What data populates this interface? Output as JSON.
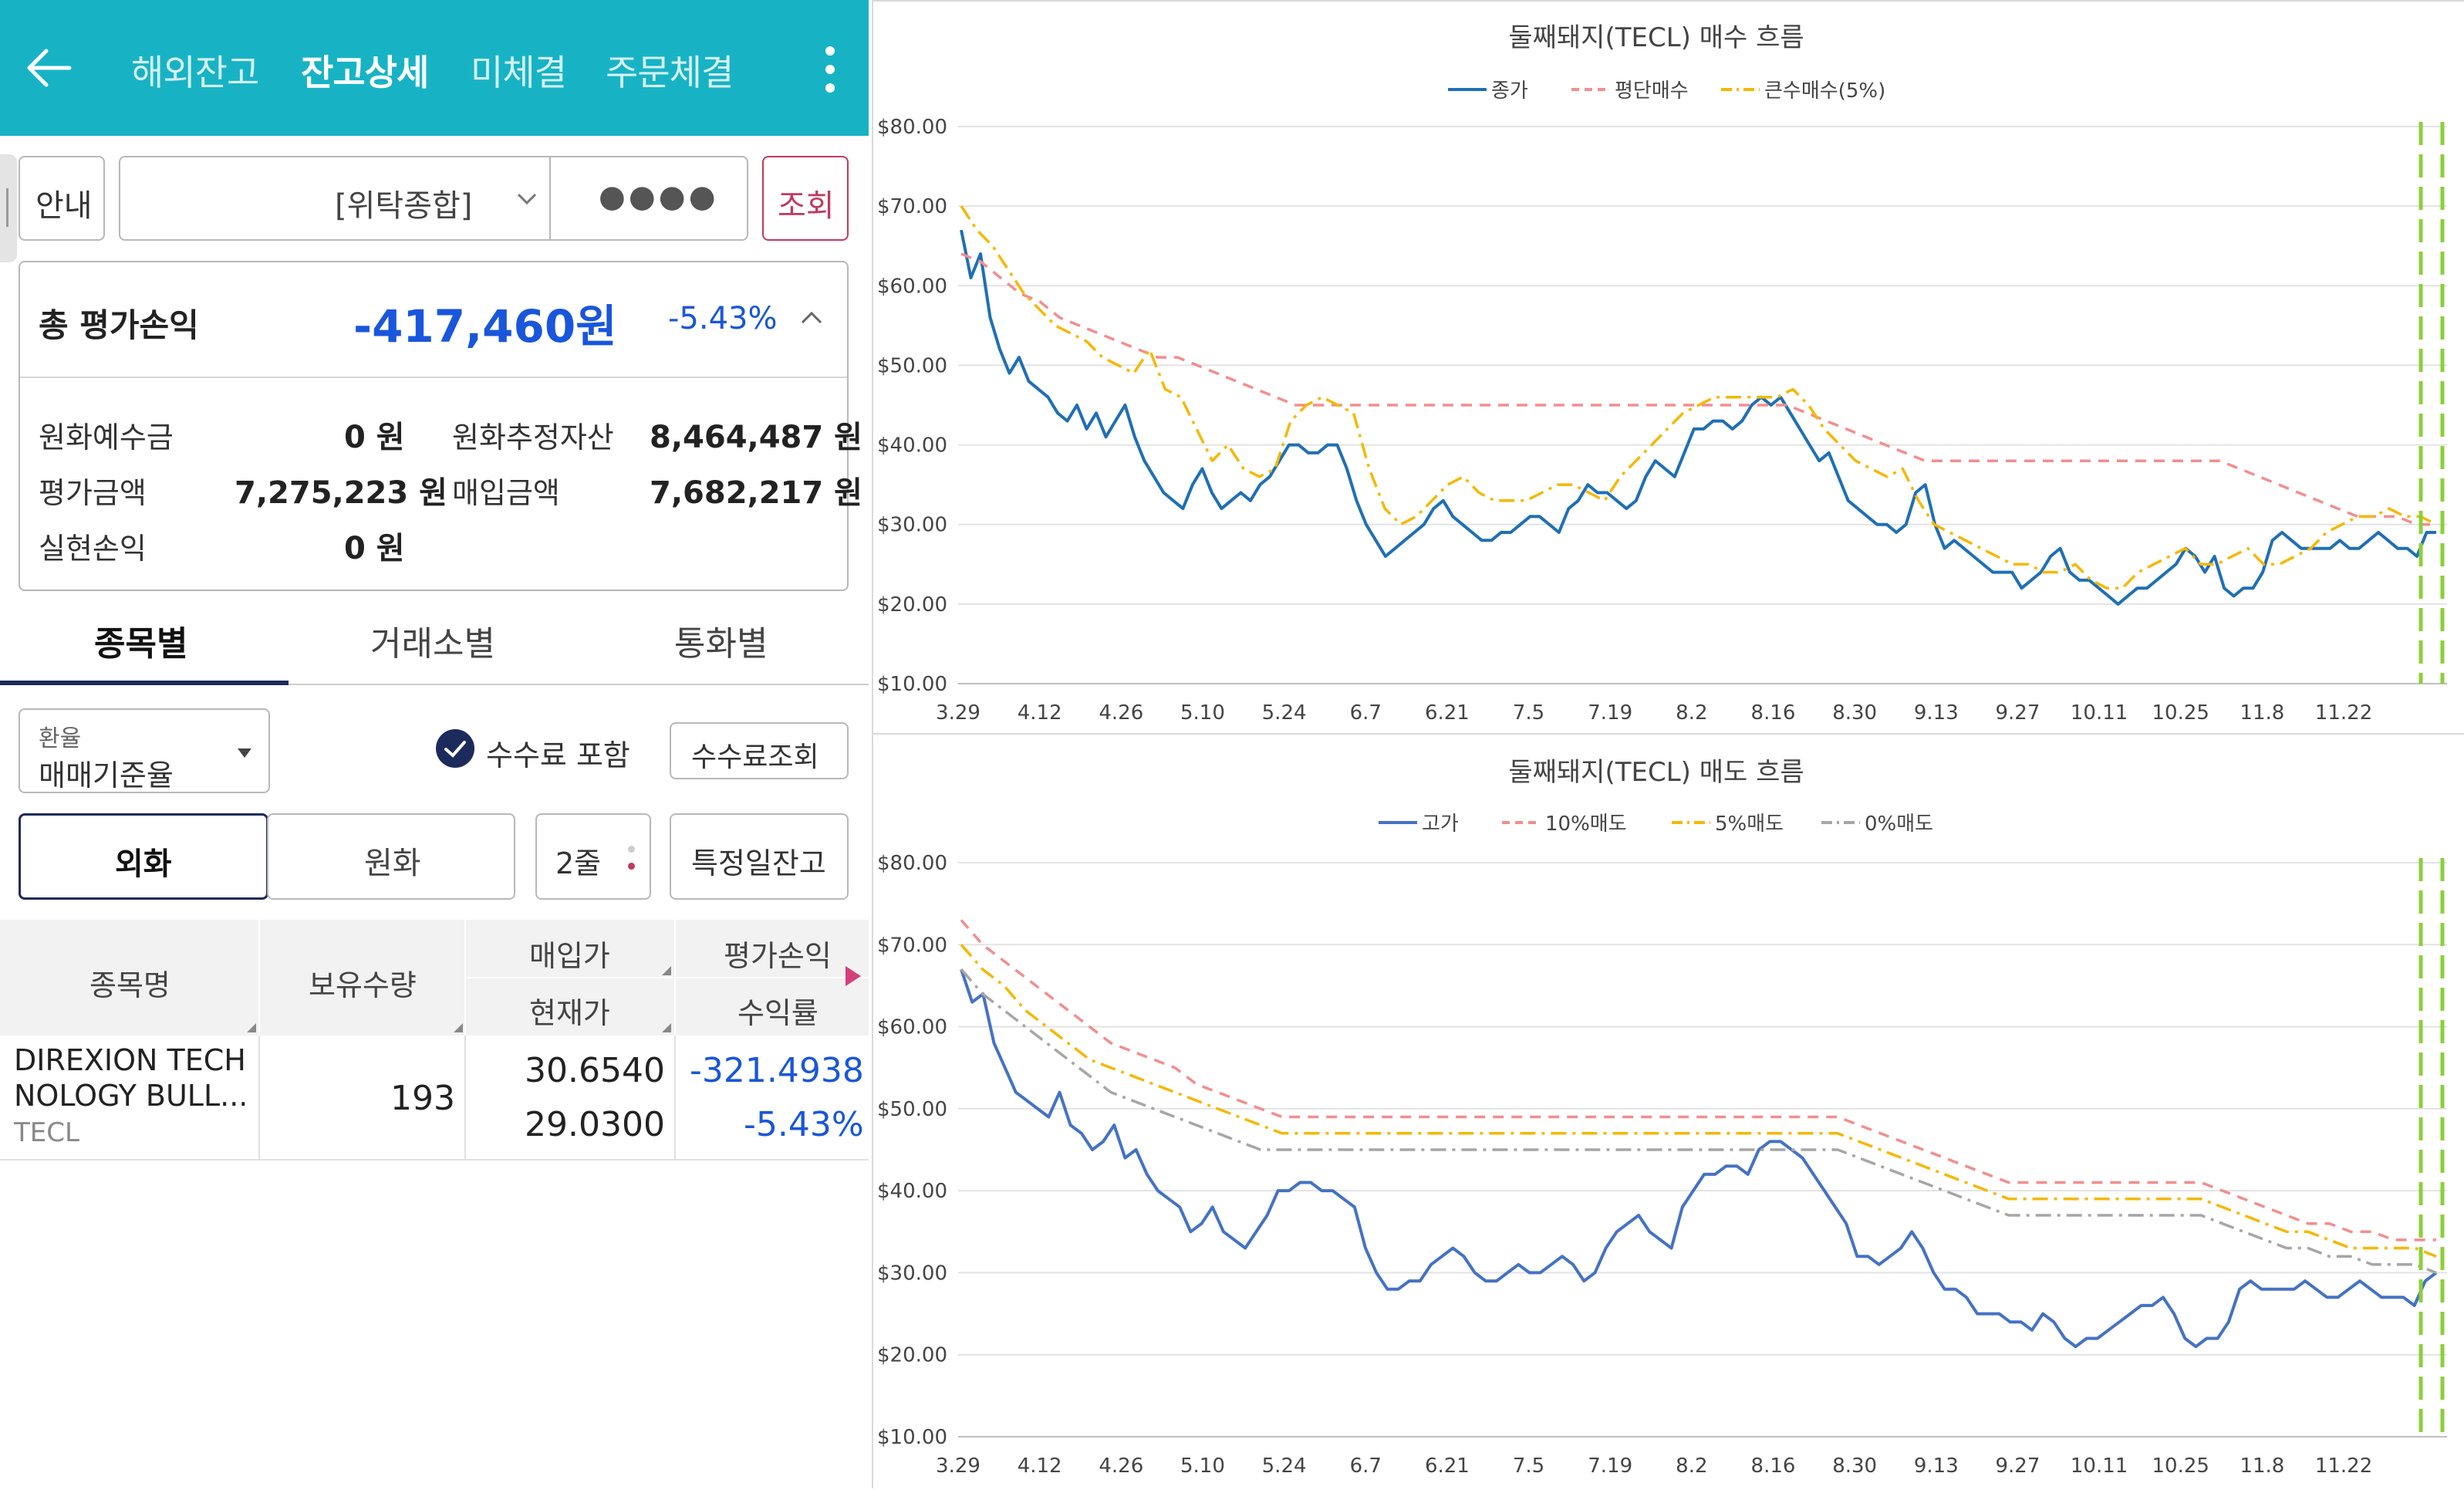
{
  "header": {
    "tabs": [
      "해외잔고",
      "잔고상세",
      "미체결",
      "주문체결"
    ],
    "active_tab": "잔고상세"
  },
  "controls": {
    "guide_button": "안내",
    "account_type": "[위탁종합]",
    "password_mask": "●●●●",
    "query_button": "조회"
  },
  "summary": {
    "title": "총 평가손익",
    "amount": "-417,460원",
    "percent": "-5.43%",
    "items": [
      {
        "label": "원화예수금",
        "value": "0 원"
      },
      {
        "label": "원화추정자산",
        "value": "8,464,487 원"
      },
      {
        "label": "평가금액",
        "value": "7,275,223 원"
      },
      {
        "label": "매입금액",
        "value": "7,682,217 원"
      },
      {
        "label": "실현손익",
        "value": "0 원"
      }
    ]
  },
  "segments": [
    "종목별",
    "거래소별",
    "통화별"
  ],
  "filters": {
    "exchange_label": "환율",
    "exchange_value": "매매기준율",
    "fee_include": "수수료 포함",
    "fee_query": "수수료조회",
    "currency_foreign": "외화",
    "currency_krw": "원화",
    "rows_select": "2줄",
    "specific_date": "특정일잔고"
  },
  "table": {
    "headers": {
      "name": "종목명",
      "qty": "보유수량",
      "buy_price": "매입가",
      "current_price": "현재가",
      "pnl": "평가손익",
      "return": "수익률"
    },
    "rows": [
      {
        "name_line1": "DIREXION TECH",
        "name_line2": "NOLOGY BULL...",
        "ticker": "TECL",
        "qty": "193",
        "buy_price": "30.6540",
        "current_price": "29.0300",
        "pnl": "-321.4938",
        "return": "-5.43%"
      }
    ]
  },
  "colors": {
    "header_bg": "#17b3c4",
    "negative": "#1a56db",
    "query_red": "#c0395f",
    "nav_indicator": "#1d2a5c",
    "series_blue": "#1f6fb5",
    "series_pink": "#f28e8e",
    "series_gold": "#f5b800",
    "series_gray": "#a6a6a6",
    "marker_green": "#8bd03a"
  },
  "chart_data": [
    {
      "type": "line",
      "title": "둘째돼지(TECL) 매수 흐름",
      "x_ticks": [
        "3.29",
        "4.12",
        "4.26",
        "5.10",
        "5.24",
        "6.7",
        "6.21",
        "7.5",
        "7.19",
        "8.2",
        "8.16",
        "8.30",
        "9.13",
        "9.27",
        "10.11",
        "10.25",
        "11.8",
        "11.22"
      ],
      "y_ticks": [
        "$10.00",
        "$20.00",
        "$30.00",
        "$40.00",
        "$50.00",
        "$60.00",
        "$70.00",
        "$80.00"
      ],
      "ylim": [
        10,
        80
      ],
      "legend_position": "top-center",
      "series": [
        {
          "name": "종가",
          "style": "solid",
          "color": "#1f6fb5",
          "values": [
            67,
            61,
            64,
            56,
            52,
            49,
            51,
            48,
            47,
            46,
            44,
            43,
            45,
            42,
            44,
            41,
            43,
            45,
            41,
            38,
            36,
            34,
            33,
            32,
            35,
            37,
            34,
            32,
            33,
            34,
            33,
            35,
            36,
            38,
            40,
            40,
            39,
            39,
            40,
            40,
            37,
            33,
            30,
            28,
            26,
            27,
            28,
            29,
            30,
            32,
            33,
            31,
            30,
            29,
            28,
            28,
            29,
            29,
            30,
            31,
            31,
            30,
            29,
            32,
            33,
            35,
            34,
            34,
            33,
            32,
            33,
            36,
            38,
            37,
            36,
            39,
            42,
            42,
            43,
            43,
            42,
            43,
            45,
            46,
            45,
            46,
            44,
            42,
            40,
            38,
            39,
            36,
            33,
            32,
            31,
            30,
            30,
            29,
            30,
            34,
            35,
            30,
            27,
            28,
            27,
            26,
            25,
            24,
            24,
            24,
            22,
            23,
            24,
            26,
            27,
            24,
            23,
            23,
            22,
            21,
            20,
            21,
            22,
            22,
            23,
            24,
            25,
            27,
            26,
            24,
            26,
            22,
            21,
            22,
            22,
            24,
            28,
            29,
            28,
            27,
            27,
            27,
            27,
            28,
            27,
            27,
            28,
            29,
            28,
            27,
            27,
            26,
            29,
            29
          ]
        },
        {
          "name": "평단매수",
          "style": "dash",
          "color": "#f28e8e",
          "values": [
            64,
            63,
            61,
            59,
            58,
            56,
            55,
            54,
            53,
            52,
            51,
            51,
            50,
            49,
            48,
            47,
            46,
            45,
            45,
            45,
            45,
            45,
            45,
            45,
            45,
            45,
            45,
            45,
            45,
            45,
            45,
            45,
            45,
            45,
            45,
            45,
            45,
            45,
            45,
            45,
            45,
            45,
            45,
            44,
            43,
            42,
            41,
            40,
            39,
            38,
            38,
            38,
            38,
            38,
            38,
            38,
            38,
            38,
            38,
            38,
            38,
            38,
            38,
            38,
            38,
            37,
            36,
            35,
            34,
            33,
            32,
            31,
            31,
            31,
            30,
            30
          ]
        },
        {
          "name": "큰수매수(5%)",
          "style": "dashdot",
          "color": "#f5b800",
          "values": [
            70,
            67,
            65,
            62,
            59,
            57,
            55,
            54,
            53,
            51,
            50,
            49,
            52,
            47,
            46,
            42,
            38,
            40,
            37,
            36,
            37,
            43,
            45,
            46,
            45,
            44,
            37,
            32,
            30,
            31,
            33,
            35,
            36,
            34,
            33,
            33,
            33,
            34,
            35,
            35,
            34,
            33,
            36,
            38,
            40,
            42,
            44,
            45,
            46,
            46,
            46,
            46,
            46,
            47,
            45,
            42,
            40,
            38,
            37,
            36,
            37,
            33,
            30,
            29,
            28,
            27,
            26,
            25,
            25,
            24,
            24,
            25,
            23,
            22,
            22,
            24,
            25,
            26,
            27,
            25,
            25,
            26,
            27,
            25,
            25,
            26,
            27,
            29,
            30,
            31,
            31,
            32,
            31,
            31,
            30
          ]
        }
      ],
      "markers": [
        "vertical dashed green lines at right edge"
      ]
    },
    {
      "type": "line",
      "title": "둘째돼지(TECL) 매도 흐름",
      "x_ticks": [
        "3.29",
        "4.12",
        "4.26",
        "5.10",
        "5.24",
        "6.7",
        "6.21",
        "7.5",
        "7.19",
        "8.2",
        "8.16",
        "8.30",
        "9.13",
        "9.27",
        "10.11",
        "10.25",
        "11.8",
        "11.22"
      ],
      "y_ticks": [
        "$10.00",
        "$20.00",
        "$30.00",
        "$40.00",
        "$50.00",
        "$60.00",
        "$70.00",
        "$80.00"
      ],
      "ylim": [
        10,
        80
      ],
      "legend_position": "top-center",
      "series": [
        {
          "name": "고가",
          "style": "solid",
          "color": "#4472c4",
          "values": [
            67,
            63,
            64,
            58,
            55,
            52,
            51,
            50,
            49,
            52,
            48,
            47,
            45,
            46,
            48,
            44,
            45,
            42,
            40,
            39,
            38,
            35,
            36,
            38,
            35,
            34,
            33,
            35,
            37,
            40,
            40,
            41,
            41,
            40,
            40,
            39,
            38,
            33,
            30,
            28,
            28,
            29,
            29,
            31,
            32,
            33,
            32,
            30,
            29,
            29,
            30,
            31,
            30,
            30,
            31,
            32,
            31,
            29,
            30,
            33,
            35,
            36,
            37,
            35,
            34,
            33,
            38,
            40,
            42,
            42,
            43,
            43,
            42,
            45,
            46,
            46,
            45,
            44,
            42,
            40,
            38,
            36,
            32,
            32,
            31,
            32,
            33,
            35,
            33,
            30,
            28,
            28,
            27,
            25,
            25,
            25,
            24,
            24,
            23,
            25,
            24,
            22,
            21,
            22,
            22,
            23,
            24,
            25,
            26,
            26,
            27,
            25,
            22,
            21,
            22,
            22,
            24,
            28,
            29,
            28,
            28,
            28,
            28,
            29,
            28,
            27,
            27,
            28,
            29,
            28,
            27,
            27,
            27,
            26,
            29,
            30
          ]
        },
        {
          "name": "10%매도",
          "style": "dash",
          "color": "#f28e8e",
          "values": [
            73,
            70,
            68,
            66,
            64,
            62,
            60,
            58,
            57,
            56,
            55,
            53,
            52,
            51,
            50,
            49,
            49,
            49,
            49,
            49,
            49,
            49,
            49,
            49,
            49,
            49,
            49,
            49,
            49,
            49,
            49,
            49,
            49,
            49,
            49,
            49,
            49,
            49,
            49,
            49,
            49,
            49,
            48,
            47,
            46,
            45,
            44,
            43,
            42,
            41,
            41,
            41,
            41,
            41,
            41,
            41,
            41,
            41,
            41,
            40,
            39,
            38,
            37,
            36,
            36,
            35,
            35,
            34,
            34,
            34
          ]
        },
        {
          "name": "5%매도",
          "style": "dashdot",
          "color": "#f5b800",
          "values": [
            70,
            67,
            65,
            62,
            60,
            58,
            56,
            55,
            54,
            53,
            52,
            51,
            50,
            49,
            48,
            47,
            47,
            47,
            47,
            47,
            47,
            47,
            47,
            47,
            47,
            47,
            47,
            47,
            47,
            47,
            47,
            47,
            47,
            47,
            47,
            47,
            47,
            47,
            47,
            47,
            47,
            47,
            46,
            45,
            44,
            43,
            42,
            41,
            40,
            39,
            39,
            39,
            39,
            39,
            39,
            39,
            39,
            39,
            39,
            38,
            37,
            36,
            35,
            35,
            34,
            33,
            33,
            33,
            33,
            32
          ]
        },
        {
          "name": "0%매도",
          "style": "dashdot",
          "color": "#a6a6a6",
          "values": [
            67,
            64,
            62,
            60,
            58,
            56,
            54,
            52,
            51,
            50,
            49,
            48,
            47,
            46,
            45,
            45,
            45,
            45,
            45,
            45,
            45,
            45,
            45,
            45,
            45,
            45,
            45,
            45,
            45,
            45,
            45,
            45,
            45,
            45,
            45,
            45,
            45,
            45,
            45,
            45,
            45,
            45,
            44,
            43,
            42,
            41,
            40,
            39,
            38,
            37,
            37,
            37,
            37,
            37,
            37,
            37,
            37,
            37,
            37,
            36,
            35,
            34,
            33,
            33,
            32,
            32,
            31,
            31,
            31,
            30
          ]
        }
      ],
      "markers": [
        "vertical dashed green lines at right edge"
      ]
    }
  ]
}
